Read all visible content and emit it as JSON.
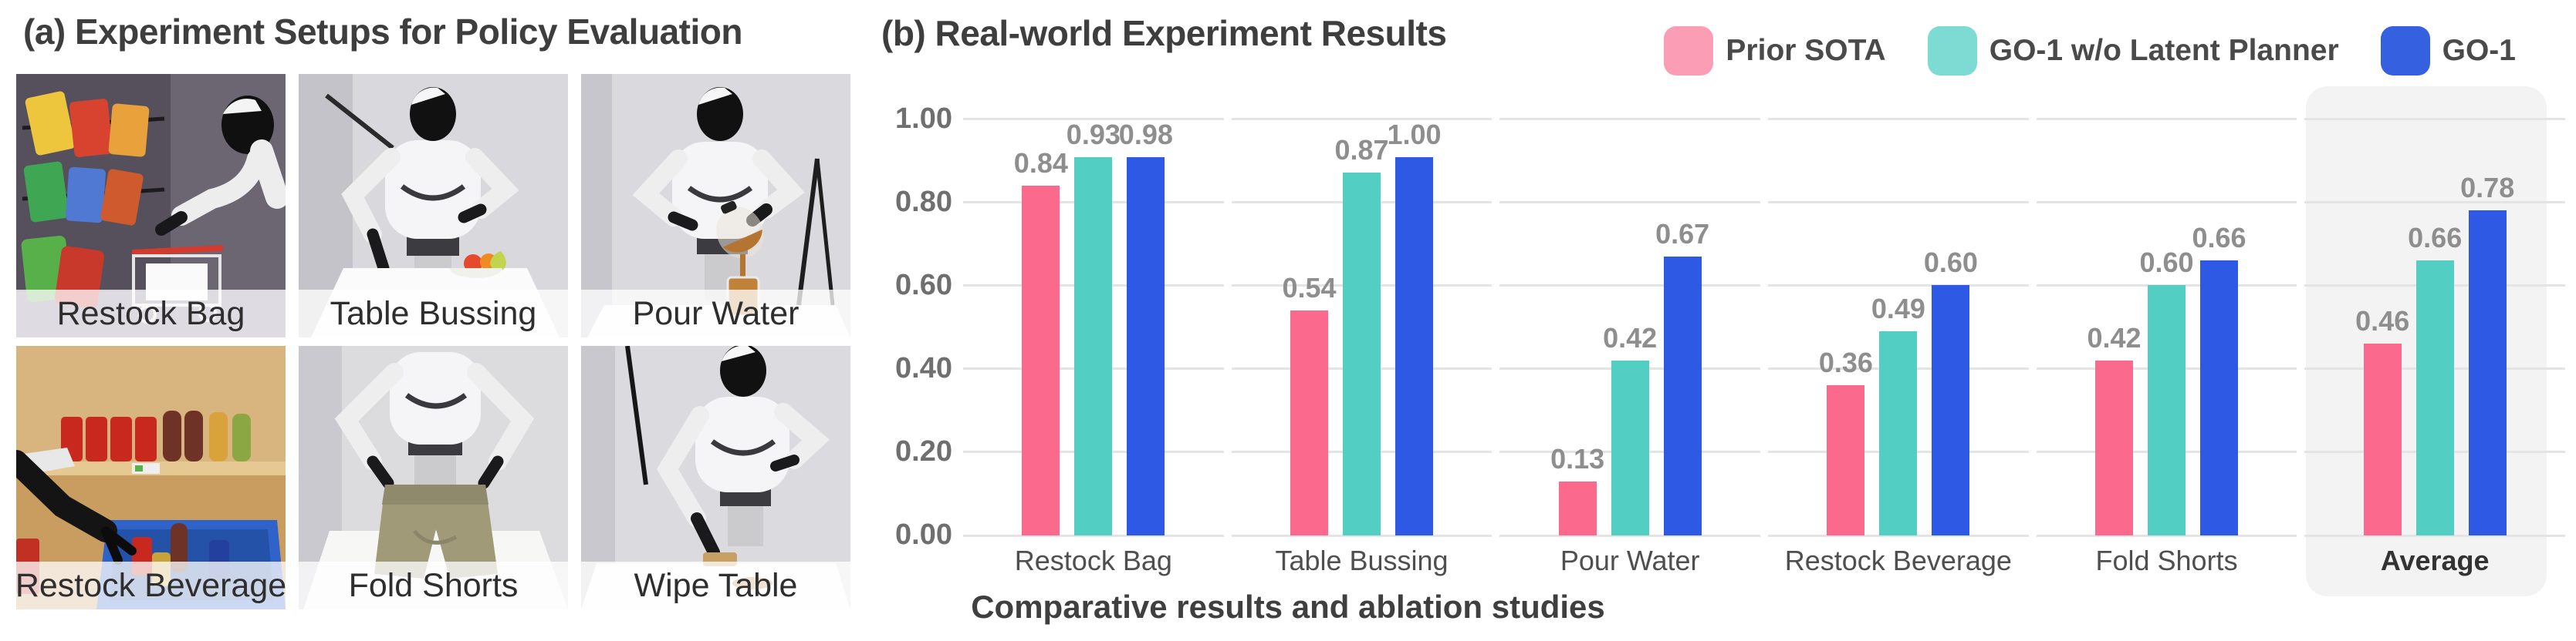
{
  "figure": {
    "panel_a_title": "(a) Experiment Setups for Policy Evaluation",
    "panel_b_title": "(b) Real-world Experiment Results",
    "caption": "Comparative results and ablation studies"
  },
  "photos": [
    {
      "label": "Restock Bag"
    },
    {
      "label": "Table Bussing"
    },
    {
      "label": "Pour Water"
    },
    {
      "label": "Restock Beverage"
    },
    {
      "label": "Fold Shorts"
    },
    {
      "label": "Wipe Table"
    }
  ],
  "chart_data": {
    "type": "bar",
    "title": "(b) Real-world Experiment Results",
    "categories": [
      "Restock Bag",
      "Table Bussing",
      "Pour Water",
      "Restock Beverage",
      "Fold Shorts",
      "Average"
    ],
    "series": [
      {
        "name": "Prior SOTA",
        "color": "#FB6A8D",
        "legend_color": "#FB9DB5",
        "values": [
          0.84,
          0.54,
          0.13,
          0.36,
          0.42,
          0.46
        ]
      },
      {
        "name": "GO-1 w/o Latent Planner",
        "color": "#53CEC3",
        "legend_color": "#7DDBD3",
        "values": [
          0.93,
          0.87,
          0.42,
          0.49,
          0.6,
          0.66
        ]
      },
      {
        "name": "GO-1",
        "color": "#2E59E4",
        "legend_color": "#3560E0",
        "values": [
          0.98,
          1.0,
          0.67,
          0.6,
          0.66,
          0.78
        ]
      }
    ],
    "yticks": [
      "1.00",
      "0.80",
      "0.60",
      "0.40",
      "0.20",
      "0.00"
    ],
    "ylim": [
      0,
      1.0
    ],
    "grid": "horizontal",
    "legend_position": "top-right",
    "highlight_category": "Average",
    "highlight_color": "#f3f3f4",
    "xlabel": "",
    "ylabel": ""
  }
}
